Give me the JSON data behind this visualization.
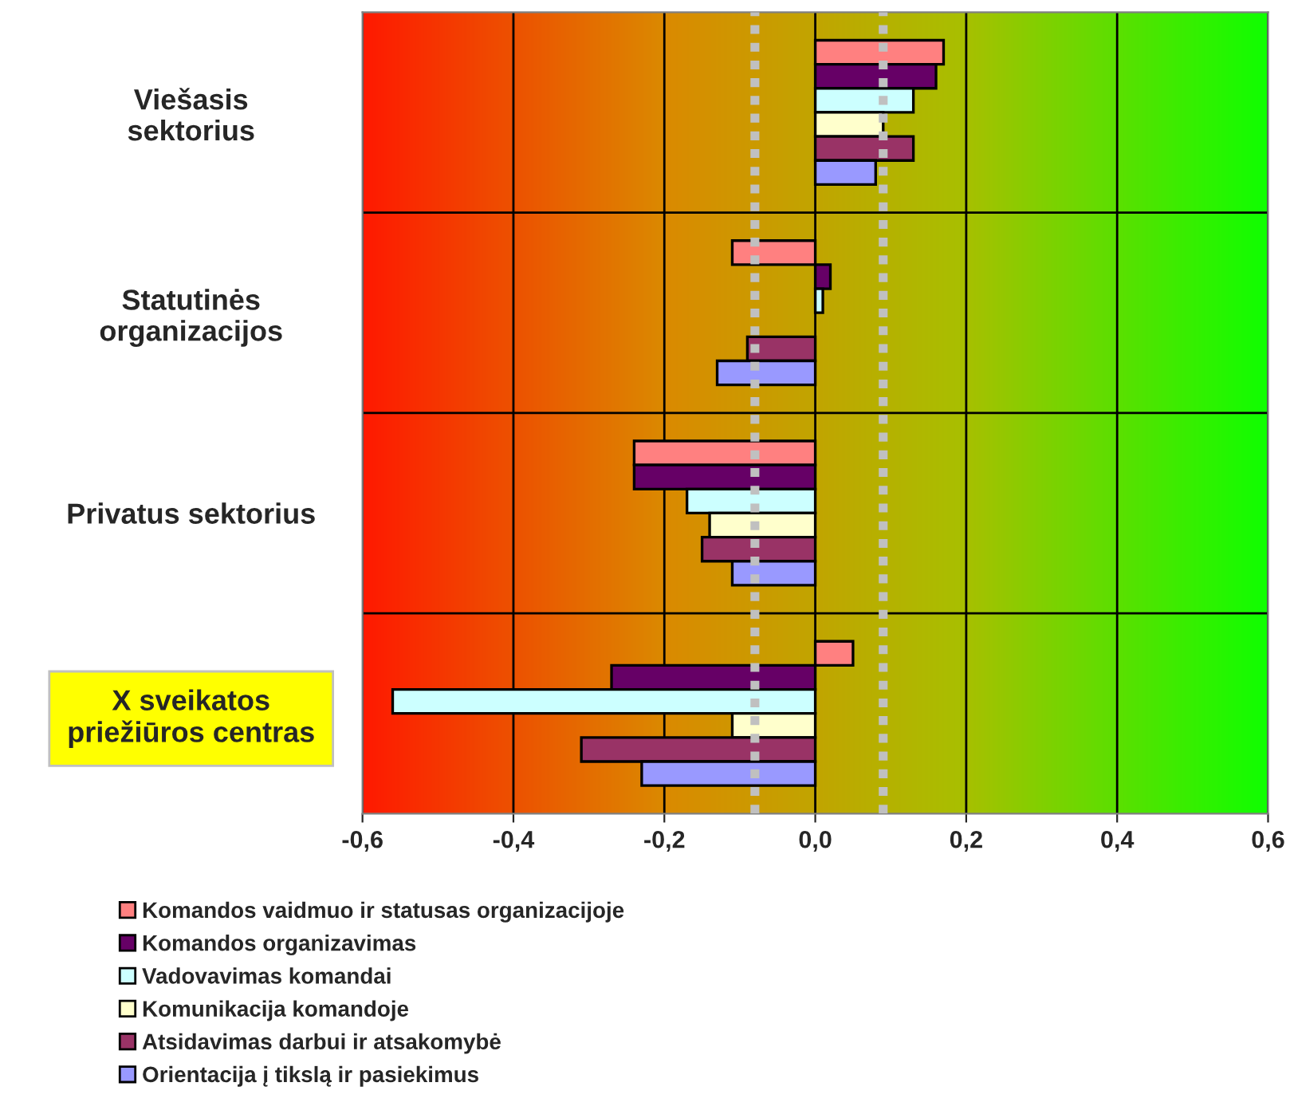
{
  "chart_data": {
    "type": "bar",
    "orientation": "horizontal",
    "categories": [
      "Viešasis\nsektorius",
      "Statutinės\norganizacijos",
      "Privatus sektorius",
      "X sveikatos\npriežiūros centras"
    ],
    "series": [
      {
        "name": "Komandos vaidmuo ir statusas organizacijoje",
        "color": "#ff8080",
        "values": [
          0.17,
          -0.11,
          -0.24,
          0.05
        ]
      },
      {
        "name": "Komandos organizavimas",
        "color": "#660066",
        "values": [
          0.16,
          0.02,
          -0.24,
          -0.27
        ]
      },
      {
        "name": "Vadovavimas komandai",
        "color": "#ccffff",
        "values": [
          0.13,
          0.01,
          -0.17,
          -0.56
        ]
      },
      {
        "name": "Komunikacija komandoje",
        "color": "#ffffcc",
        "values": [
          0.09,
          null,
          -0.14,
          -0.11
        ]
      },
      {
        "name": "Atsidavimas darbui ir atsakomybė",
        "color": "#993366",
        "values": [
          0.13,
          -0.09,
          -0.15,
          -0.31
        ]
      },
      {
        "name": "Orientacija į tikslą ir pasiekimus",
        "color": "#9999ff",
        "values": [
          0.08,
          -0.13,
          -0.11,
          -0.23
        ]
      }
    ],
    "xlim": [
      -0.6,
      0.6
    ],
    "xticks": [
      {
        "value": -0.6,
        "label": "-0,6"
      },
      {
        "value": -0.4,
        "label": "-0,4"
      },
      {
        "value": -0.2,
        "label": "-0,2"
      },
      {
        "value": 0,
        "label": "0,0"
      },
      {
        "value": 0.2,
        "label": "0,2"
      },
      {
        "value": 0.4,
        "label": "0,4"
      },
      {
        "value": 0.6,
        "label": "0,6"
      }
    ],
    "ref_lines": [
      {
        "axis": "x",
        "value": -0.08,
        "color": "#c0c0c0",
        "line_style": "dotted"
      },
      {
        "axis": "x",
        "value": 0.09,
        "color": "#c0c0c0",
        "line_style": "dotted"
      }
    ],
    "grid": true,
    "legend": "bottom"
  }
}
